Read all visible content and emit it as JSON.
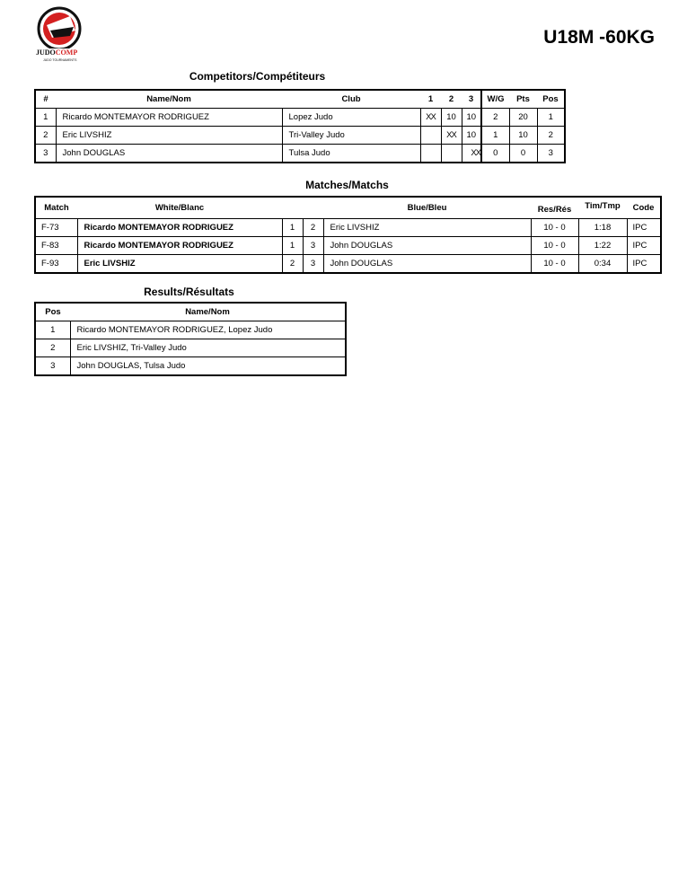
{
  "logo": {
    "text": "JUDOCOMP",
    "subtext": "JUDO TOURNAMENTS",
    "colors": {
      "red": "#d42020",
      "black": "#111111"
    }
  },
  "title": "U18M -60KG",
  "competitors": {
    "heading": "Competitors/Compétiteurs",
    "headers": [
      "#",
      "Name/Nom",
      "Club",
      "1",
      "2",
      "3",
      "W/G",
      "Pts",
      "Pos"
    ],
    "rows": [
      [
        "1",
        "Ricardo MONTEMAYOR RODRIGUEZ",
        "Lopez Judo",
        "XX",
        "10",
        "10",
        "2",
        "20",
        "1"
      ],
      [
        "2",
        "Eric LIVSHIZ",
        "Tri-Valley Judo",
        "",
        "XX",
        "10",
        "1",
        "10",
        "2"
      ],
      [
        "3",
        "John DOUGLAS",
        "Tulsa Judo",
        "",
        "",
        "XX",
        "0",
        "0",
        "3"
      ]
    ]
  },
  "matches": {
    "heading": "Matches/Matchs",
    "headers": [
      "Match",
      "White/Blanc",
      "Blue/Bleu",
      "Res/Rés",
      "Tim/Tmp",
      "Code"
    ],
    "rows": [
      [
        "F-73",
        "Ricardo MONTEMAYOR RODRIGUEZ",
        "1",
        "2",
        "Eric LIVSHIZ",
        "10 - 0",
        "1:18",
        "IPC"
      ],
      [
        "F-83",
        "Ricardo MONTEMAYOR RODRIGUEZ",
        "1",
        "3",
        "John DOUGLAS",
        "10 - 0",
        "1:22",
        "IPC"
      ],
      [
        "F-93",
        "Eric LIVSHIZ",
        "2",
        "3",
        "John DOUGLAS",
        "10 - 0",
        "0:34",
        "IPC"
      ]
    ]
  },
  "results": {
    "heading": "Results/Résultats",
    "headers": [
      "Pos",
      "Name/Nom"
    ],
    "rows": [
      [
        "1",
        "Ricardo MONTEMAYOR RODRIGUEZ, Lopez Judo"
      ],
      [
        "2",
        "Eric LIVSHIZ, Tri-Valley Judo"
      ],
      [
        "3",
        "John DOUGLAS, Tulsa Judo"
      ]
    ]
  }
}
